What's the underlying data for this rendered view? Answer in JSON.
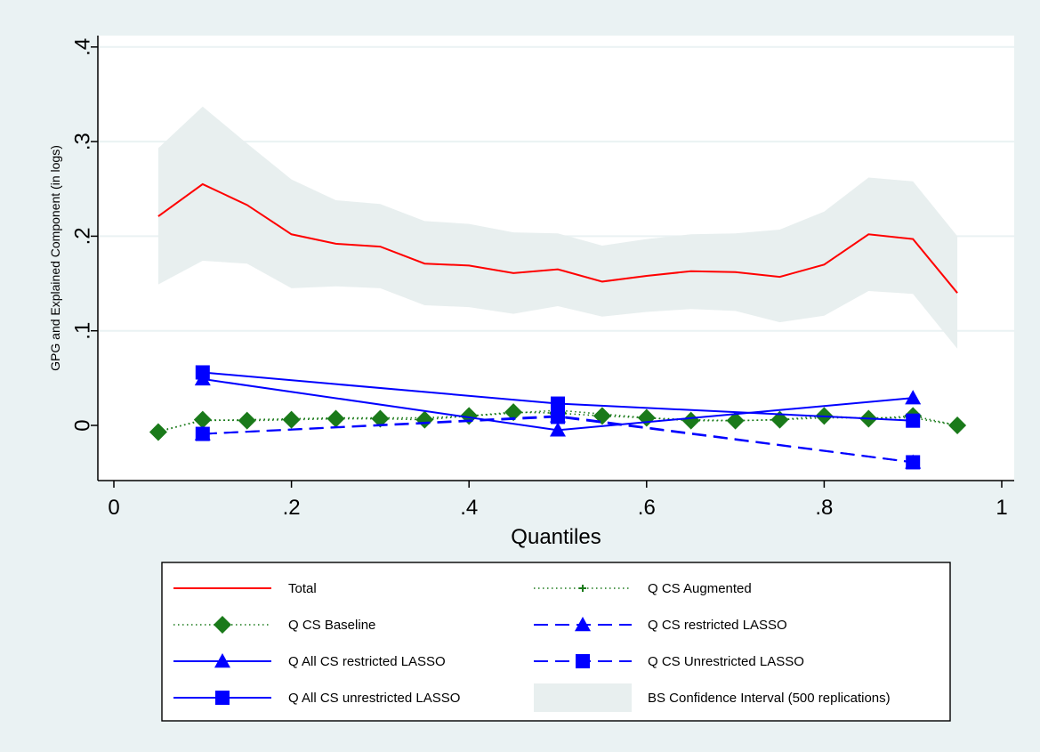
{
  "colors": {
    "outer_bg": "#eaf2f3",
    "plot_bg": "#ffffff",
    "total": "#ff0000",
    "green": "#1a7a1a",
    "blue": "#0000ff",
    "ci_band": "#e8efef",
    "grid": "#eaf2f3",
    "axis": "#000000"
  },
  "chart_data": {
    "type": "line",
    "title": "",
    "xlabel": "Quantiles",
    "ylabel": "GPG and Explained Component (in logs)",
    "xlim": [
      0,
      1
    ],
    "ylim": [
      -0.06,
      0.41
    ],
    "xticks": [
      {
        "value": 0,
        "label": "0"
      },
      {
        "value": 0.2,
        "label": ".2"
      },
      {
        "value": 0.4,
        "label": ".4"
      },
      {
        "value": 0.6,
        "label": ".6"
      },
      {
        "value": 0.8,
        "label": ".8"
      },
      {
        "value": 1,
        "label": "1"
      }
    ],
    "yticks": [
      {
        "value": 0,
        "label": "0"
      },
      {
        "value": 0.1,
        "label": ".1"
      },
      {
        "value": 0.2,
        "label": ".2"
      },
      {
        "value": 0.3,
        "label": ".3"
      },
      {
        "value": 0.4,
        "label": ".4"
      }
    ],
    "grid": true,
    "legend_position": "bottom",
    "band": {
      "name": "BS Confidence Interval (500 replications)",
      "x": [
        0.05,
        0.1,
        0.15,
        0.2,
        0.25,
        0.3,
        0.35,
        0.4,
        0.45,
        0.5,
        0.55,
        0.6,
        0.65,
        0.7,
        0.75,
        0.8,
        0.85,
        0.9,
        0.95
      ],
      "upper": [
        0.293,
        0.337,
        0.298,
        0.26,
        0.238,
        0.234,
        0.216,
        0.213,
        0.204,
        0.203,
        0.19,
        0.197,
        0.202,
        0.203,
        0.207,
        0.226,
        0.262,
        0.258,
        0.2
      ],
      "lower": [
        0.149,
        0.174,
        0.171,
        0.145,
        0.147,
        0.145,
        0.127,
        0.125,
        0.118,
        0.126,
        0.115,
        0.12,
        0.123,
        0.121,
        0.109,
        0.116,
        0.142,
        0.139,
        0.081
      ]
    },
    "series": [
      {
        "name": "Total",
        "style": "solid",
        "marker": "none",
        "color": "#ff0000",
        "x": [
          0.05,
          0.1,
          0.15,
          0.2,
          0.25,
          0.3,
          0.35,
          0.4,
          0.45,
          0.5,
          0.55,
          0.6,
          0.65,
          0.7,
          0.75,
          0.8,
          0.85,
          0.9,
          0.95
        ],
        "y": [
          0.221,
          0.255,
          0.233,
          0.202,
          0.192,
          0.189,
          0.171,
          0.169,
          0.161,
          0.165,
          0.152,
          0.158,
          0.163,
          0.162,
          0.157,
          0.17,
          0.202,
          0.197,
          0.14
        ]
      },
      {
        "name": "Q CS Augmented",
        "style": "dotted",
        "marker": "plus",
        "color": "#1a7a1a",
        "x": [
          0.05,
          0.1,
          0.15,
          0.2,
          0.25,
          0.3,
          0.35,
          0.4,
          0.45,
          0.5,
          0.55,
          0.6,
          0.65,
          0.7,
          0.75,
          0.8,
          0.85,
          0.9,
          0.95
        ],
        "y": [
          -0.006,
          0.005,
          0.006,
          0.007,
          0.008,
          0.008,
          0.008,
          0.01,
          0.013,
          0.016,
          0.012,
          0.008,
          0.006,
          0.005,
          0.006,
          0.008,
          0.008,
          0.008,
          0.0
        ]
      },
      {
        "name": "Q CS Baseline",
        "style": "dotted",
        "marker": "diamond",
        "color": "#1a7a1a",
        "x": [
          0.05,
          0.1,
          0.15,
          0.2,
          0.25,
          0.3,
          0.35,
          0.4,
          0.45,
          0.5,
          0.55,
          0.6,
          0.65,
          0.7,
          0.75,
          0.8,
          0.85,
          0.9,
          0.95
        ],
        "y": [
          -0.007,
          0.006,
          0.005,
          0.006,
          0.007,
          0.007,
          0.006,
          0.01,
          0.014,
          0.013,
          0.01,
          0.008,
          0.005,
          0.005,
          0.006,
          0.01,
          0.007,
          0.01,
          0.0
        ]
      },
      {
        "name": "Q CS restricted LASSO",
        "style": "dashed",
        "marker": "triangle",
        "color": "#0000ff",
        "x": [
          0.1,
          0.5,
          0.9
        ],
        "y": [
          -0.009,
          0.01,
          -0.039
        ]
      },
      {
        "name": "Q All CS restricted LASSO",
        "style": "solid",
        "marker": "triangle",
        "color": "#0000ff",
        "x": [
          0.1,
          0.5,
          0.9
        ],
        "y": [
          0.049,
          -0.005,
          0.029
        ]
      },
      {
        "name": "Q CS Unrestricted LASSO",
        "style": "dashed",
        "marker": "square",
        "color": "#0000ff",
        "x": [
          0.1,
          0.5,
          0.9
        ],
        "y": [
          -0.009,
          0.009,
          -0.039
        ]
      },
      {
        "name": "Q All CS unrestricted LASSO",
        "style": "solid",
        "marker": "square",
        "color": "#0000ff",
        "x": [
          0.1,
          0.5,
          0.9
        ],
        "y": [
          0.056,
          0.023,
          0.005
        ]
      }
    ],
    "legend": [
      {
        "label": "Total",
        "series": "Total"
      },
      {
        "label": "Q CS Augmented",
        "series": "Q CS Augmented"
      },
      {
        "label": "Q CS Baseline",
        "series": "Q CS Baseline"
      },
      {
        "label": "Q CS restricted LASSO",
        "series": "Q CS restricted LASSO"
      },
      {
        "label": "Q All CS restricted LASSO",
        "series": "Q All CS restricted LASSO"
      },
      {
        "label": "Q CS Unrestricted LASSO",
        "series": "Q CS Unrestricted LASSO"
      },
      {
        "label": "Q All CS unrestricted LASSO",
        "series": "Q All CS unrestricted LASSO"
      },
      {
        "label": "BS Confidence Interval (500 replications)",
        "series": "band"
      }
    ]
  }
}
